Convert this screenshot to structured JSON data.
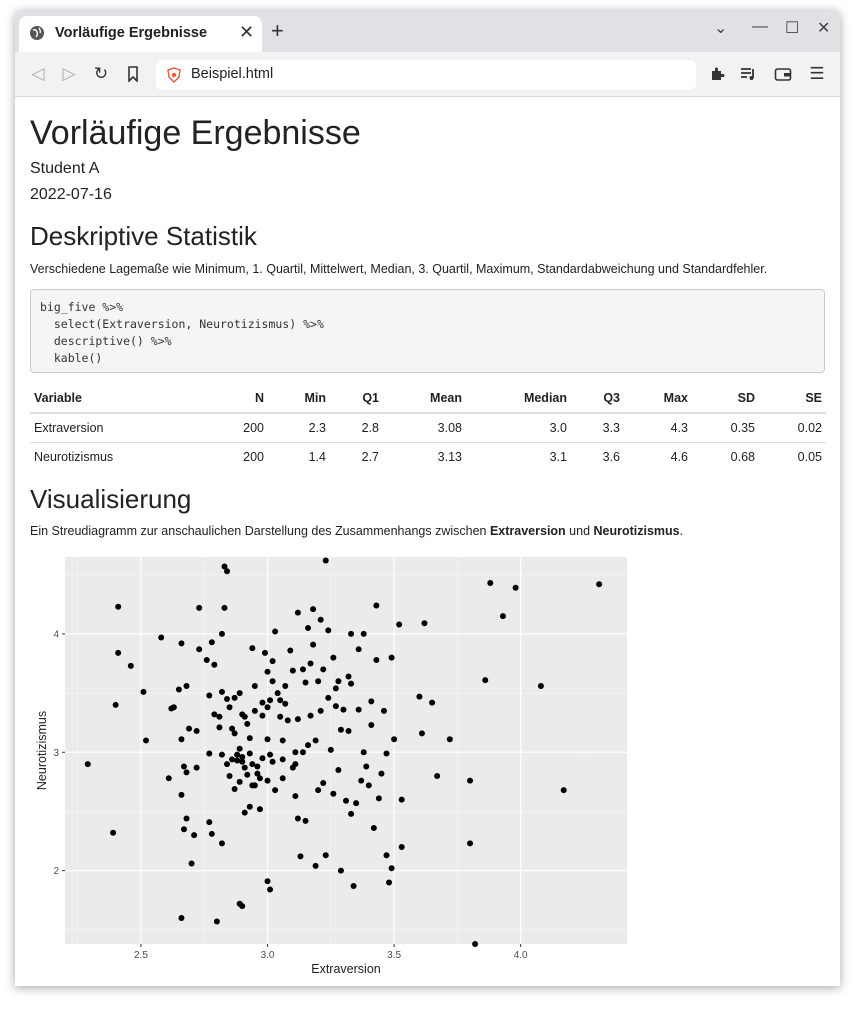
{
  "browser": {
    "tab_title": "Vorläufige Ergebnisse",
    "url": "Beispiel.html"
  },
  "page": {
    "title": "Vorläufige Ergebnisse",
    "author": "Student A",
    "date": "2022-07-16",
    "section1_title": "Deskriptive Statistik",
    "section1_text": "Verschiedene Lagemaße wie Minimum, 1. Quartil, Mittelwert, Median, 3. Quartil, Maximum, Standardabweichung und Standardfehler.",
    "code_lines": [
      "big_five %>%",
      "  select(Extraversion, Neurotizismus) %>%",
      "  descriptive() %>%",
      "  kable()"
    ],
    "section2_title": "Visualisierung",
    "section2_text_pre": "Ein Streudiagramm zur anschaulichen Darstellung des Zusammenhangs zwischen ",
    "section2_bold1": "Extraversion",
    "section2_mid": " und ",
    "section2_bold2": "Neurotizismus",
    "section2_end": "."
  },
  "table": {
    "headers": [
      "Variable",
      "N",
      "Min",
      "Q1",
      "Mean",
      "Median",
      "Q3",
      "Max",
      "SD",
      "SE"
    ],
    "rows": [
      [
        "Extraversion",
        "200",
        "2.3",
        "2.8",
        "3.08",
        "3.0",
        "3.3",
        "4.3",
        "0.35",
        "0.02"
      ],
      [
        "Neurotizismus",
        "200",
        "1.4",
        "2.7",
        "3.13",
        "3.1",
        "3.6",
        "4.6",
        "0.68",
        "0.05"
      ]
    ]
  },
  "chart_data": {
    "type": "scatter",
    "xlabel": "Extraversion",
    "ylabel": "Neurotizismus",
    "xlim": [
      2.2,
      4.42
    ],
    "ylim": [
      1.38,
      4.65
    ],
    "xticks": [
      "2.5",
      "3.0",
      "3.5",
      "4.0"
    ],
    "yticks": [
      "2",
      "3",
      "4"
    ],
    "background": "#ebebeb",
    "grid": true,
    "points": [
      [
        2.29,
        2.9
      ],
      [
        2.39,
        2.32
      ],
      [
        2.4,
        3.4
      ],
      [
        2.41,
        4.23
      ],
      [
        2.41,
        3.84
      ],
      [
        2.46,
        3.73
      ],
      [
        2.51,
        3.51
      ],
      [
        2.52,
        3.1
      ],
      [
        2.58,
        3.97
      ],
      [
        2.61,
        2.78
      ],
      [
        2.62,
        3.37
      ],
      [
        2.63,
        3.38
      ],
      [
        2.65,
        3.53
      ],
      [
        2.66,
        3.92
      ],
      [
        2.66,
        3.11
      ],
      [
        2.66,
        2.64
      ],
      [
        2.66,
        1.6
      ],
      [
        2.67,
        2.35
      ],
      [
        2.67,
        2.88
      ],
      [
        2.68,
        3.56
      ],
      [
        2.68,
        2.44
      ],
      [
        2.68,
        2.83
      ],
      [
        2.69,
        3.2
      ],
      [
        2.7,
        2.06
      ],
      [
        2.71,
        2.3
      ],
      [
        2.72,
        2.87
      ],
      [
        2.72,
        3.18
      ],
      [
        2.73,
        4.22
      ],
      [
        2.73,
        3.87
      ],
      [
        2.76,
        3.78
      ],
      [
        2.77,
        2.99
      ],
      [
        2.77,
        2.41
      ],
      [
        2.77,
        3.48
      ],
      [
        2.78,
        3.93
      ],
      [
        2.78,
        2.31
      ],
      [
        2.79,
        3.74
      ],
      [
        2.79,
        3.32
      ],
      [
        2.8,
        1.57
      ],
      [
        2.81,
        3.3
      ],
      [
        2.81,
        3.21
      ],
      [
        2.82,
        2.98
      ],
      [
        2.82,
        4.0
      ],
      [
        2.82,
        3.51
      ],
      [
        2.82,
        2.23
      ],
      [
        2.83,
        4.22
      ],
      [
        2.83,
        4.57
      ],
      [
        2.84,
        4.53
      ],
      [
        2.84,
        3.45
      ],
      [
        2.85,
        3.38
      ],
      [
        2.85,
        2.8
      ],
      [
        2.86,
        3.2
      ],
      [
        2.86,
        2.94
      ],
      [
        2.87,
        2.69
      ],
      [
        2.87,
        3.16
      ],
      [
        2.88,
        2.98
      ],
      [
        2.88,
        2.93
      ],
      [
        2.89,
        3.03
      ],
      [
        2.89,
        2.75
      ],
      [
        2.89,
        3.5
      ],
      [
        2.9,
        2.96
      ],
      [
        2.9,
        2.92
      ],
      [
        2.9,
        3.32
      ],
      [
        2.91,
        2.87
      ],
      [
        2.91,
        2.49
      ],
      [
        2.91,
        3.3
      ],
      [
        2.92,
        2.81
      ],
      [
        2.92,
        3.24
      ],
      [
        2.93,
        2.54
      ],
      [
        2.93,
        3.12
      ],
      [
        2.94,
        2.9
      ],
      [
        2.94,
        3.88
      ],
      [
        2.95,
        3.35
      ],
      [
        2.95,
        2.72
      ],
      [
        2.96,
        2.88
      ],
      [
        2.97,
        2.78
      ],
      [
        2.98,
        3.42
      ],
      [
        2.98,
        3.31
      ],
      [
        2.99,
        3.84
      ],
      [
        3.0,
        3.68
      ],
      [
        3.0,
        2.76
      ],
      [
        3.0,
        3.38
      ],
      [
        3.0,
        1.91
      ],
      [
        3.01,
        1.84
      ],
      [
        3.01,
        2.98
      ],
      [
        3.01,
        3.44
      ],
      [
        3.02,
        3.77
      ],
      [
        3.02,
        3.6
      ],
      [
        3.03,
        2.68
      ],
      [
        3.03,
        4.02
      ],
      [
        3.04,
        3.5
      ],
      [
        3.05,
        3.3
      ],
      [
        3.06,
        2.94
      ],
      [
        3.07,
        3.41
      ],
      [
        3.08,
        3.27
      ],
      [
        3.09,
        3.86
      ],
      [
        3.1,
        2.87
      ],
      [
        3.1,
        3.69
      ],
      [
        3.11,
        3.0
      ],
      [
        3.11,
        2.9
      ],
      [
        3.12,
        2.44
      ],
      [
        3.12,
        4.18
      ],
      [
        3.13,
        2.12
      ],
      [
        3.14,
        3.7
      ],
      [
        3.15,
        3.59
      ],
      [
        3.16,
        3.06
      ],
      [
        3.17,
        3.31
      ],
      [
        3.17,
        3.75
      ],
      [
        3.18,
        3.91
      ],
      [
        3.18,
        4.21
      ],
      [
        3.19,
        2.04
      ],
      [
        3.2,
        2.68
      ],
      [
        3.2,
        3.6
      ],
      [
        3.21,
        4.12
      ],
      [
        3.21,
        3.35
      ],
      [
        3.22,
        3.7
      ],
      [
        3.22,
        2.74
      ],
      [
        3.23,
        4.62
      ],
      [
        3.24,
        3.46
      ],
      [
        3.25,
        3.02
      ],
      [
        3.26,
        3.8
      ],
      [
        3.27,
        3.54
      ],
      [
        3.28,
        3.6
      ],
      [
        3.29,
        2.0
      ],
      [
        3.29,
        3.19
      ],
      [
        3.3,
        3.36
      ],
      [
        3.31,
        2.59
      ],
      [
        3.32,
        3.64
      ],
      [
        3.33,
        2.48
      ],
      [
        3.33,
        3.58
      ],
      [
        3.34,
        1.87
      ],
      [
        3.35,
        2.57
      ],
      [
        3.36,
        3.87
      ],
      [
        3.37,
        2.76
      ],
      [
        3.38,
        3.0
      ],
      [
        3.39,
        2.88
      ],
      [
        3.4,
        2.72
      ],
      [
        3.41,
        3.23
      ],
      [
        3.42,
        2.36
      ],
      [
        3.43,
        4.24
      ],
      [
        3.43,
        3.78
      ],
      [
        3.45,
        2.82
      ],
      [
        3.46,
        3.35
      ],
      [
        3.47,
        2.13
      ],
      [
        3.47,
        2.99
      ],
      [
        3.48,
        1.9
      ],
      [
        3.49,
        2.02
      ],
      [
        3.49,
        3.8
      ],
      [
        3.5,
        3.11
      ],
      [
        3.52,
        4.08
      ],
      [
        3.53,
        2.6
      ],
      [
        3.53,
        2.2
      ],
      [
        3.6,
        3.47
      ],
      [
        3.61,
        3.16
      ],
      [
        3.62,
        4.09
      ],
      [
        3.65,
        3.42
      ],
      [
        3.67,
        2.8
      ],
      [
        3.72,
        3.11
      ],
      [
        3.8,
        2.76
      ],
      [
        3.8,
        2.23
      ],
      [
        3.82,
        1.38
      ],
      [
        3.86,
        3.61
      ],
      [
        3.88,
        4.43
      ],
      [
        3.93,
        4.15
      ],
      [
        3.98,
        4.39
      ],
      [
        4.08,
        3.56
      ],
      [
        4.17,
        2.68
      ],
      [
        4.31,
        4.42
      ],
      [
        3.26,
        2.65
      ],
      [
        3.23,
        2.13
      ],
      [
        2.97,
        2.52
      ],
      [
        2.96,
        2.82
      ],
      [
        2.94,
        2.72
      ],
      [
        3.06,
        2.78
      ],
      [
        3.15,
        2.42
      ],
      [
        3.28,
        2.85
      ],
      [
        3.36,
        3.36
      ],
      [
        3.12,
        3.28
      ],
      [
        2.89,
        1.72
      ],
      [
        2.9,
        1.7
      ],
      [
        3.05,
        3.44
      ],
      [
        2.87,
        3.46
      ],
      [
        3.0,
        3.11
      ],
      [
        3.16,
        4.05
      ],
      [
        2.95,
        3.56
      ],
      [
        3.11,
        2.63
      ],
      [
        3.24,
        4.03
      ],
      [
        3.06,
        3.1
      ],
      [
        3.32,
        3.18
      ],
      [
        3.44,
        2.61
      ],
      [
        3.33,
        4.0
      ],
      [
        3.38,
        4.0
      ],
      [
        3.14,
        3.0
      ],
      [
        2.98,
        2.95
      ],
      [
        3.41,
        3.43
      ],
      [
        3.02,
        2.92
      ],
      [
        3.07,
        3.56
      ],
      [
        2.84,
        2.9
      ],
      [
        3.19,
        3.1
      ],
      [
        3.27,
        3.39
      ],
      [
        2.93,
        2.99
      ]
    ]
  }
}
